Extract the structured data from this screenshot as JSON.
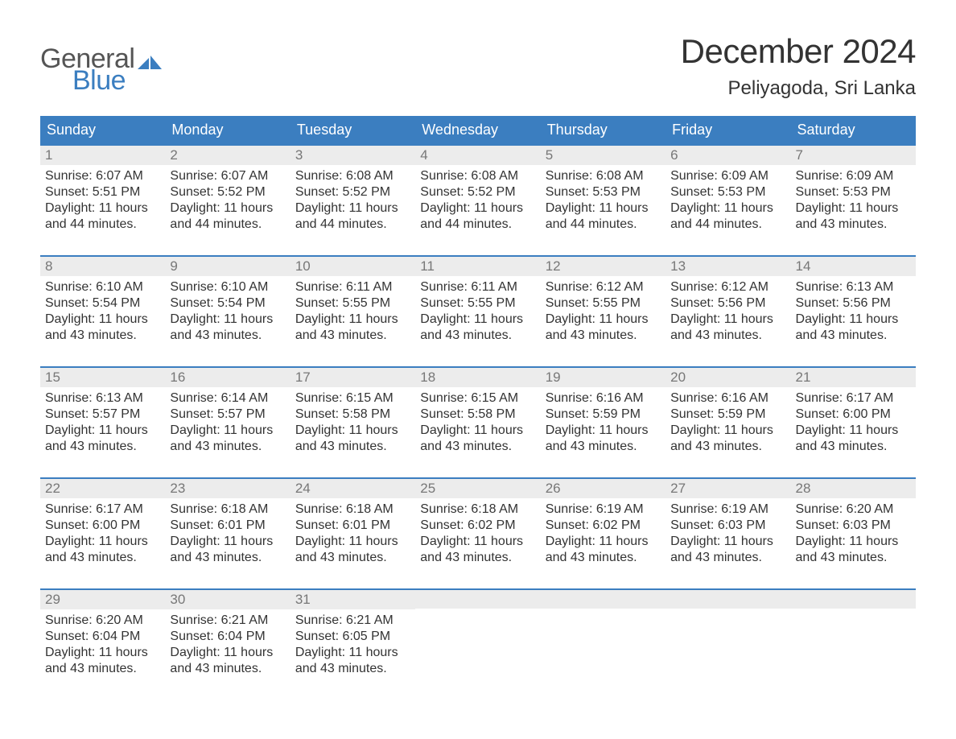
{
  "brand": {
    "word1": "General",
    "word2": "Blue",
    "text_color_1": "#555555",
    "text_color_2": "#3b7ec0",
    "flag_color": "#3b7ec0"
  },
  "title": "December 2024",
  "location": "Peliyagoda, Sri Lanka",
  "colors": {
    "header_bg": "#3b7ec0",
    "header_text": "#ffffff",
    "strip_bg": "#ececec",
    "strip_border": "#3b7ec0",
    "daynum_text": "#777777",
    "body_text": "#333333",
    "page_bg": "#ffffff"
  },
  "fonts": {
    "title_size_pt": 32,
    "location_size_pt": 18,
    "dayheader_size_pt": 14,
    "daynum_size_pt": 13,
    "body_size_pt": 12
  },
  "day_headers": [
    "Sunday",
    "Monday",
    "Tuesday",
    "Wednesday",
    "Thursday",
    "Friday",
    "Saturday"
  ],
  "weeks": [
    [
      {
        "n": "1",
        "sr": "Sunrise: 6:07 AM",
        "ss": "Sunset: 5:51 PM",
        "d1": "Daylight: 11 hours",
        "d2": "and 44 minutes."
      },
      {
        "n": "2",
        "sr": "Sunrise: 6:07 AM",
        "ss": "Sunset: 5:52 PM",
        "d1": "Daylight: 11 hours",
        "d2": "and 44 minutes."
      },
      {
        "n": "3",
        "sr": "Sunrise: 6:08 AM",
        "ss": "Sunset: 5:52 PM",
        "d1": "Daylight: 11 hours",
        "d2": "and 44 minutes."
      },
      {
        "n": "4",
        "sr": "Sunrise: 6:08 AM",
        "ss": "Sunset: 5:52 PM",
        "d1": "Daylight: 11 hours",
        "d2": "and 44 minutes."
      },
      {
        "n": "5",
        "sr": "Sunrise: 6:08 AM",
        "ss": "Sunset: 5:53 PM",
        "d1": "Daylight: 11 hours",
        "d2": "and 44 minutes."
      },
      {
        "n": "6",
        "sr": "Sunrise: 6:09 AM",
        "ss": "Sunset: 5:53 PM",
        "d1": "Daylight: 11 hours",
        "d2": "and 44 minutes."
      },
      {
        "n": "7",
        "sr": "Sunrise: 6:09 AM",
        "ss": "Sunset: 5:53 PM",
        "d1": "Daylight: 11 hours",
        "d2": "and 43 minutes."
      }
    ],
    [
      {
        "n": "8",
        "sr": "Sunrise: 6:10 AM",
        "ss": "Sunset: 5:54 PM",
        "d1": "Daylight: 11 hours",
        "d2": "and 43 minutes."
      },
      {
        "n": "9",
        "sr": "Sunrise: 6:10 AM",
        "ss": "Sunset: 5:54 PM",
        "d1": "Daylight: 11 hours",
        "d2": "and 43 minutes."
      },
      {
        "n": "10",
        "sr": "Sunrise: 6:11 AM",
        "ss": "Sunset: 5:55 PM",
        "d1": "Daylight: 11 hours",
        "d2": "and 43 minutes."
      },
      {
        "n": "11",
        "sr": "Sunrise: 6:11 AM",
        "ss": "Sunset: 5:55 PM",
        "d1": "Daylight: 11 hours",
        "d2": "and 43 minutes."
      },
      {
        "n": "12",
        "sr": "Sunrise: 6:12 AM",
        "ss": "Sunset: 5:55 PM",
        "d1": "Daylight: 11 hours",
        "d2": "and 43 minutes."
      },
      {
        "n": "13",
        "sr": "Sunrise: 6:12 AM",
        "ss": "Sunset: 5:56 PM",
        "d1": "Daylight: 11 hours",
        "d2": "and 43 minutes."
      },
      {
        "n": "14",
        "sr": "Sunrise: 6:13 AM",
        "ss": "Sunset: 5:56 PM",
        "d1": "Daylight: 11 hours",
        "d2": "and 43 minutes."
      }
    ],
    [
      {
        "n": "15",
        "sr": "Sunrise: 6:13 AM",
        "ss": "Sunset: 5:57 PM",
        "d1": "Daylight: 11 hours",
        "d2": "and 43 minutes."
      },
      {
        "n": "16",
        "sr": "Sunrise: 6:14 AM",
        "ss": "Sunset: 5:57 PM",
        "d1": "Daylight: 11 hours",
        "d2": "and 43 minutes."
      },
      {
        "n": "17",
        "sr": "Sunrise: 6:15 AM",
        "ss": "Sunset: 5:58 PM",
        "d1": "Daylight: 11 hours",
        "d2": "and 43 minutes."
      },
      {
        "n": "18",
        "sr": "Sunrise: 6:15 AM",
        "ss": "Sunset: 5:58 PM",
        "d1": "Daylight: 11 hours",
        "d2": "and 43 minutes."
      },
      {
        "n": "19",
        "sr": "Sunrise: 6:16 AM",
        "ss": "Sunset: 5:59 PM",
        "d1": "Daylight: 11 hours",
        "d2": "and 43 minutes."
      },
      {
        "n": "20",
        "sr": "Sunrise: 6:16 AM",
        "ss": "Sunset: 5:59 PM",
        "d1": "Daylight: 11 hours",
        "d2": "and 43 minutes."
      },
      {
        "n": "21",
        "sr": "Sunrise: 6:17 AM",
        "ss": "Sunset: 6:00 PM",
        "d1": "Daylight: 11 hours",
        "d2": "and 43 minutes."
      }
    ],
    [
      {
        "n": "22",
        "sr": "Sunrise: 6:17 AM",
        "ss": "Sunset: 6:00 PM",
        "d1": "Daylight: 11 hours",
        "d2": "and 43 minutes."
      },
      {
        "n": "23",
        "sr": "Sunrise: 6:18 AM",
        "ss": "Sunset: 6:01 PM",
        "d1": "Daylight: 11 hours",
        "d2": "and 43 minutes."
      },
      {
        "n": "24",
        "sr": "Sunrise: 6:18 AM",
        "ss": "Sunset: 6:01 PM",
        "d1": "Daylight: 11 hours",
        "d2": "and 43 minutes."
      },
      {
        "n": "25",
        "sr": "Sunrise: 6:18 AM",
        "ss": "Sunset: 6:02 PM",
        "d1": "Daylight: 11 hours",
        "d2": "and 43 minutes."
      },
      {
        "n": "26",
        "sr": "Sunrise: 6:19 AM",
        "ss": "Sunset: 6:02 PM",
        "d1": "Daylight: 11 hours",
        "d2": "and 43 minutes."
      },
      {
        "n": "27",
        "sr": "Sunrise: 6:19 AM",
        "ss": "Sunset: 6:03 PM",
        "d1": "Daylight: 11 hours",
        "d2": "and 43 minutes."
      },
      {
        "n": "28",
        "sr": "Sunrise: 6:20 AM",
        "ss": "Sunset: 6:03 PM",
        "d1": "Daylight: 11 hours",
        "d2": "and 43 minutes."
      }
    ],
    [
      {
        "n": "29",
        "sr": "Sunrise: 6:20 AM",
        "ss": "Sunset: 6:04 PM",
        "d1": "Daylight: 11 hours",
        "d2": "and 43 minutes."
      },
      {
        "n": "30",
        "sr": "Sunrise: 6:21 AM",
        "ss": "Sunset: 6:04 PM",
        "d1": "Daylight: 11 hours",
        "d2": "and 43 minutes."
      },
      {
        "n": "31",
        "sr": "Sunrise: 6:21 AM",
        "ss": "Sunset: 6:05 PM",
        "d1": "Daylight: 11 hours",
        "d2": "and 43 minutes."
      },
      null,
      null,
      null,
      null
    ]
  ]
}
